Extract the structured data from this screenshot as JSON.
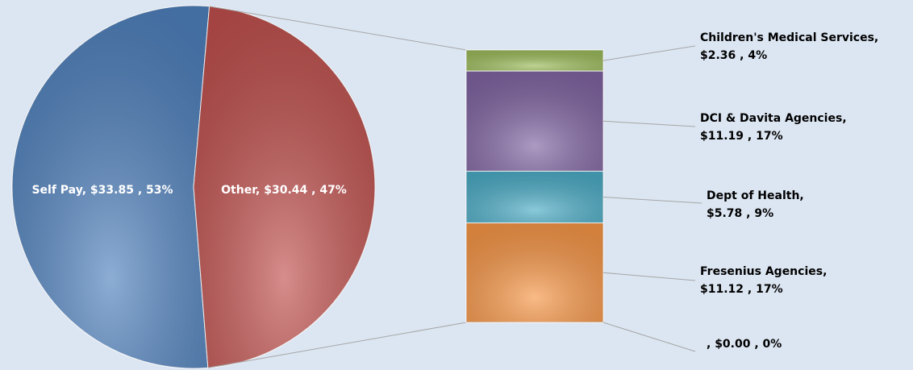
{
  "chart_data": {
    "type": "pie-of-bar",
    "pie": {
      "categories": [
        "Self Pay",
        "Other"
      ],
      "values": [
        33.85,
        30.44
      ],
      "value_labels": [
        "Self Pay, $33.85 , 53%",
        "Other, $30.44 , 47%"
      ],
      "colors": [
        "#4f81bd",
        "#c0504d"
      ]
    },
    "bar": {
      "categories": [
        "Children's Medical Services",
        "DCI & Davita Agencies",
        "Dept of Health",
        "Fresenius Agencies",
        null
      ],
      "values": [
        2.36,
        11.19,
        5.78,
        11.12,
        0.0
      ],
      "value_labels": [
        "Children's Medical Services, $2.36 , 4%",
        "DCI & Davita Agencies, $11.19 , 17%",
        "Dept of Health, $5.78 , 9%",
        "Fresenius Agencies, $11.12 , 17%",
        ", $0.00 , 0%"
      ],
      "colors": [
        "#9bbb59",
        "#8064a2",
        "#4bacc6",
        "#f79646",
        "#f79646"
      ]
    }
  }
}
